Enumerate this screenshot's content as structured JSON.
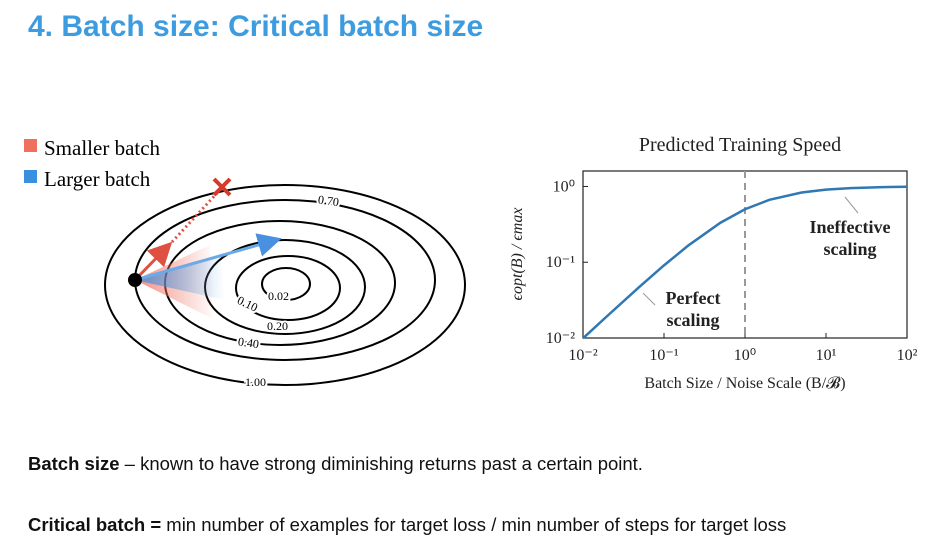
{
  "title": "4. Batch size: Critical batch size",
  "diagram": {
    "legend": [
      "Smaller batch",
      "Larger batch"
    ],
    "contour_labels": [
      "0.70",
      "0.02",
      "0.10",
      "0.20",
      "0.40",
      "1.00"
    ]
  },
  "chart_data": {
    "type": "line",
    "title": "Predicted Training Speed",
    "x_label": "Batch Size / Noise Scale   (B/𝓑)",
    "y_label": "ϵopt(B) / ϵmax",
    "log_x": true,
    "log_y": true,
    "xlim": [
      0.01,
      100
    ],
    "ylim": [
      0.01,
      1.6
    ],
    "xticks": [
      {
        "value": 0.01,
        "label": "10⁻²"
      },
      {
        "value": 0.1,
        "label": "10⁻¹"
      },
      {
        "value": 1,
        "label": "10⁰"
      },
      {
        "value": 10,
        "label": "10¹"
      },
      {
        "value": 100,
        "label": "10²"
      }
    ],
    "yticks": [
      {
        "value": 0.01,
        "label": "10⁻²"
      },
      {
        "value": 0.1,
        "label": "10⁻¹"
      },
      {
        "value": 1,
        "label": "10⁰"
      }
    ],
    "x": [
      0.01,
      0.02,
      0.05,
      0.1,
      0.2,
      0.5,
      1,
      2,
      5,
      10,
      20,
      50,
      100
    ],
    "series": [
      {
        "color": "#2f78b4",
        "values": [
          0.0099,
          0.0196,
          0.0476,
          0.0909,
          0.1667,
          0.3333,
          0.5,
          0.6667,
          0.8333,
          0.9091,
          0.9524,
          0.9804,
          0.9901
        ]
      }
    ],
    "vline": 1,
    "annotations": [
      {
        "lines": [
          "Perfect",
          "scaling"
        ]
      },
      {
        "lines": [
          "Ineffective",
          "scaling"
        ]
      }
    ]
  },
  "body": [
    {
      "bold": "Batch size",
      "text": " – known to have strong diminishing returns past a certain point."
    },
    {
      "bold": "Critical batch =",
      "text": " min number of examples for target loss / min number of steps for target loss"
    }
  ]
}
